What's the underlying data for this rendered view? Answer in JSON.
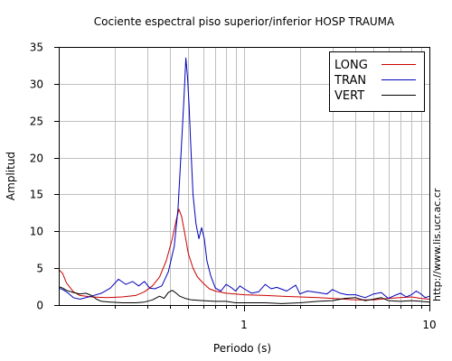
{
  "chart_data": {
    "type": "line",
    "title": "Cociente espectral piso superior/inferior  HOSP TRAUMA",
    "xlabel": "Periodo (s)",
    "ylabel": "Amplitud",
    "xscale": "log",
    "xlim": [
      0.1,
      10
    ],
    "ylim": [
      0,
      35
    ],
    "x_tick_labels": [
      "1",
      "10"
    ],
    "y_ticks": [
      0,
      5,
      10,
      15,
      20,
      25,
      30,
      35
    ],
    "grid": true,
    "legend_position": "top-right",
    "series": [
      {
        "name": "LONG",
        "color": "#cc0000",
        "points": [
          [
            0.1,
            4.8
          ],
          [
            0.105,
            4.3
          ],
          [
            0.11,
            3.0
          ],
          [
            0.12,
            1.8
          ],
          [
            0.13,
            1.3
          ],
          [
            0.15,
            1.1
          ],
          [
            0.18,
            1.0
          ],
          [
            0.22,
            1.1
          ],
          [
            0.26,
            1.3
          ],
          [
            0.29,
            1.8
          ],
          [
            0.32,
            2.6
          ],
          [
            0.35,
            3.8
          ],
          [
            0.38,
            6.0
          ],
          [
            0.41,
            9.0
          ],
          [
            0.43,
            11.5
          ],
          [
            0.445,
            13.0
          ],
          [
            0.46,
            12.0
          ],
          [
            0.48,
            9.5
          ],
          [
            0.5,
            7.0
          ],
          [
            0.53,
            5.0
          ],
          [
            0.56,
            3.8
          ],
          [
            0.6,
            3.0
          ],
          [
            0.65,
            2.2
          ],
          [
            0.7,
            1.9
          ],
          [
            0.8,
            1.6
          ],
          [
            0.9,
            1.5
          ],
          [
            1.0,
            1.4
          ],
          [
            1.3,
            1.3
          ],
          [
            1.6,
            1.2
          ],
          [
            2.0,
            1.1
          ],
          [
            2.5,
            1.0
          ],
          [
            3.0,
            0.9
          ],
          [
            3.5,
            0.8
          ],
          [
            4.0,
            0.7
          ],
          [
            5.0,
            0.7
          ],
          [
            6.0,
            0.9
          ],
          [
            7.0,
            1.0
          ],
          [
            8.0,
            1.1
          ],
          [
            9.0,
            0.9
          ],
          [
            10.0,
            0.8
          ]
        ]
      },
      {
        "name": "TRAN",
        "color": "#0000bb",
        "points": [
          [
            0.1,
            2.3
          ],
          [
            0.105,
            2.1
          ],
          [
            0.11,
            1.8
          ],
          [
            0.12,
            1.0
          ],
          [
            0.13,
            0.8
          ],
          [
            0.15,
            1.2
          ],
          [
            0.17,
            1.6
          ],
          [
            0.19,
            2.3
          ],
          [
            0.21,
            3.5
          ],
          [
            0.23,
            2.8
          ],
          [
            0.25,
            3.2
          ],
          [
            0.27,
            2.6
          ],
          [
            0.29,
            3.2
          ],
          [
            0.31,
            2.3
          ],
          [
            0.33,
            2.2
          ],
          [
            0.36,
            2.6
          ],
          [
            0.39,
            4.5
          ],
          [
            0.42,
            8.0
          ],
          [
            0.44,
            13.0
          ],
          [
            0.46,
            22.0
          ],
          [
            0.475,
            28.5
          ],
          [
            0.485,
            33.5
          ],
          [
            0.495,
            31.0
          ],
          [
            0.505,
            27.0
          ],
          [
            0.515,
            22.0
          ],
          [
            0.53,
            15.0
          ],
          [
            0.55,
            11.0
          ],
          [
            0.57,
            9.0
          ],
          [
            0.59,
            10.5
          ],
          [
            0.61,
            9.0
          ],
          [
            0.63,
            6.0
          ],
          [
            0.66,
            4.0
          ],
          [
            0.7,
            2.3
          ],
          [
            0.75,
            1.9
          ],
          [
            0.8,
            2.8
          ],
          [
            0.85,
            2.4
          ],
          [
            0.9,
            1.9
          ],
          [
            0.95,
            2.6
          ],
          [
            1.0,
            2.2
          ],
          [
            1.1,
            1.6
          ],
          [
            1.2,
            1.8
          ],
          [
            1.3,
            2.8
          ],
          [
            1.4,
            2.2
          ],
          [
            1.5,
            2.4
          ],
          [
            1.7,
            1.9
          ],
          [
            1.9,
            2.7
          ],
          [
            2.0,
            1.5
          ],
          [
            2.2,
            1.9
          ],
          [
            2.5,
            1.7
          ],
          [
            2.8,
            1.5
          ],
          [
            3.0,
            2.1
          ],
          [
            3.3,
            1.6
          ],
          [
            3.6,
            1.4
          ],
          [
            4.0,
            1.4
          ],
          [
            4.5,
            1.0
          ],
          [
            5.0,
            1.5
          ],
          [
            5.5,
            1.7
          ],
          [
            6.0,
            0.9
          ],
          [
            6.5,
            1.3
          ],
          [
            7.0,
            1.6
          ],
          [
            7.5,
            1.1
          ],
          [
            8.0,
            1.4
          ],
          [
            8.5,
            1.9
          ],
          [
            9.0,
            1.5
          ],
          [
            9.5,
            1.0
          ],
          [
            10.0,
            1.2
          ]
        ]
      },
      {
        "name": "VERT",
        "color": "#000000",
        "points": [
          [
            0.1,
            2.5
          ],
          [
            0.105,
            2.3
          ],
          [
            0.11,
            2.0
          ],
          [
            0.12,
            1.7
          ],
          [
            0.13,
            1.5
          ],
          [
            0.14,
            1.6
          ],
          [
            0.15,
            1.3
          ],
          [
            0.16,
            0.8
          ],
          [
            0.17,
            0.5
          ],
          [
            0.19,
            0.4
          ],
          [
            0.22,
            0.3
          ],
          [
            0.26,
            0.3
          ],
          [
            0.29,
            0.4
          ],
          [
            0.32,
            0.7
          ],
          [
            0.35,
            1.2
          ],
          [
            0.37,
            0.9
          ],
          [
            0.39,
            1.7
          ],
          [
            0.41,
            2.0
          ],
          [
            0.43,
            1.6
          ],
          [
            0.45,
            1.2
          ],
          [
            0.48,
            0.9
          ],
          [
            0.52,
            0.7
          ],
          [
            0.6,
            0.6
          ],
          [
            0.7,
            0.5
          ],
          [
            0.8,
            0.5
          ],
          [
            0.9,
            0.3
          ],
          [
            1.0,
            0.3
          ],
          [
            1.3,
            0.3
          ],
          [
            1.6,
            0.2
          ],
          [
            2.0,
            0.3
          ],
          [
            2.5,
            0.5
          ],
          [
            3.0,
            0.6
          ],
          [
            3.5,
            0.9
          ],
          [
            4.0,
            1.0
          ],
          [
            4.5,
            0.6
          ],
          [
            5.0,
            0.8
          ],
          [
            5.5,
            1.0
          ],
          [
            6.0,
            0.6
          ],
          [
            7.0,
            0.5
          ],
          [
            8.0,
            0.6
          ],
          [
            9.0,
            0.5
          ],
          [
            10.0,
            0.4
          ]
        ]
      }
    ]
  },
  "credit": "http://www.lis.ucr.ac.cr"
}
